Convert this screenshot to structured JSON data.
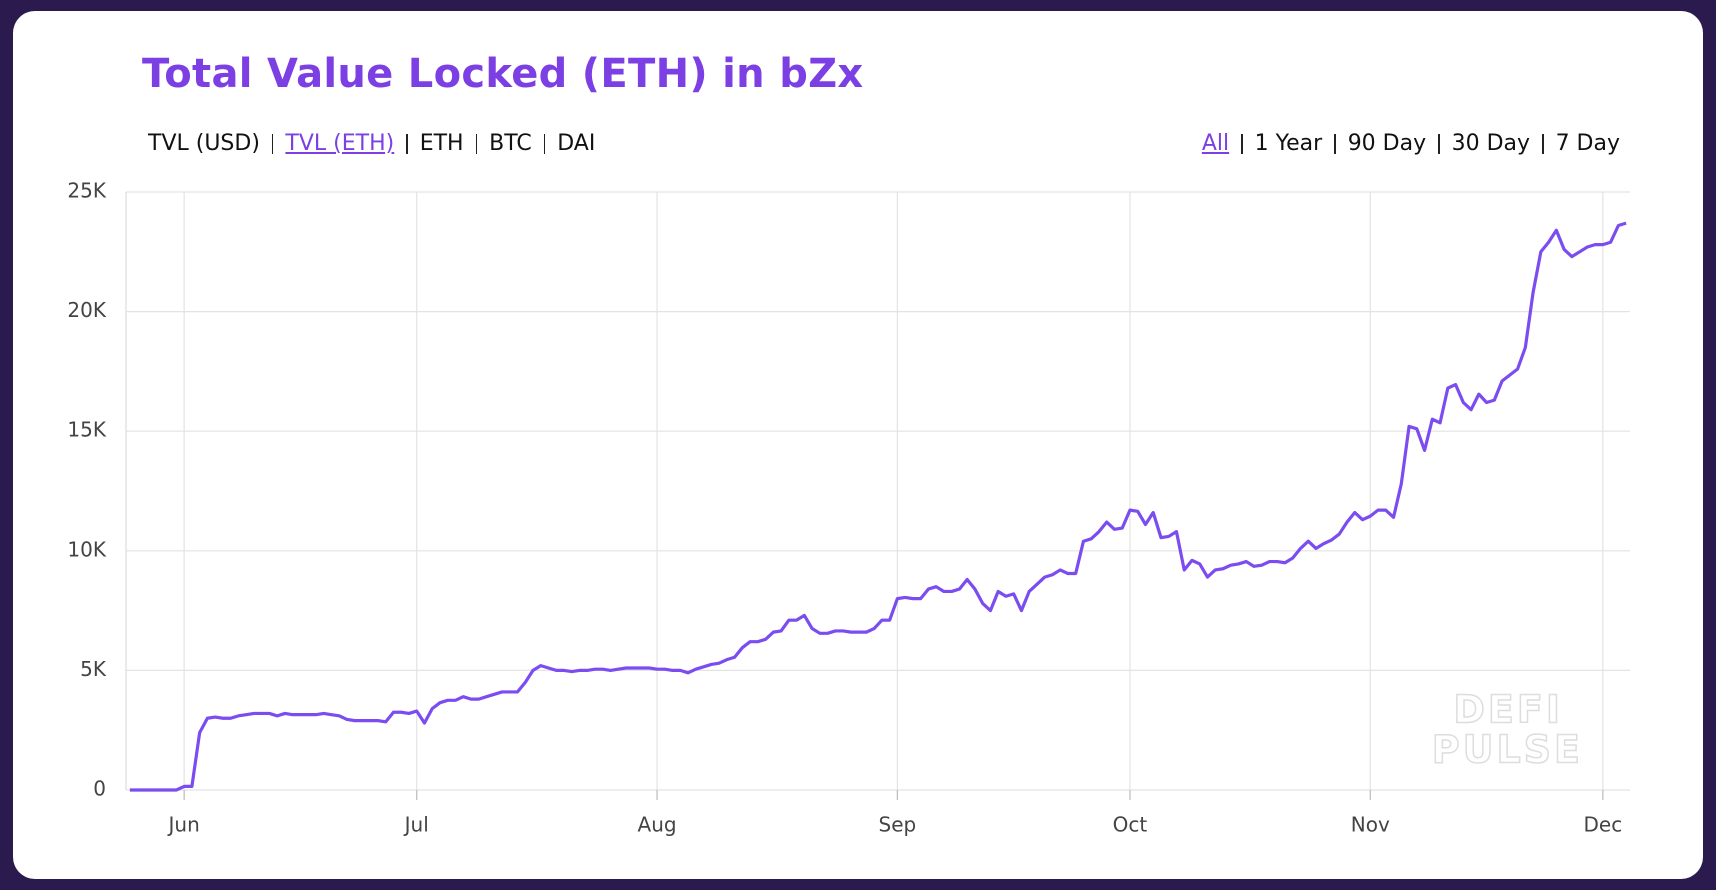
{
  "chart_data": {
    "type": "line",
    "title": "Total Value Locked (ETH) in bZx",
    "color": "#7b4cf0",
    "categories": [
      null,
      null,
      null,
      null,
      null,
      null,
      null,
      "Jun",
      null,
      null,
      null,
      null,
      null,
      null,
      null,
      null,
      null,
      null,
      null,
      null,
      null,
      null,
      null,
      null,
      null,
      null,
      null,
      null,
      null,
      null,
      null,
      null,
      null,
      null,
      null,
      null,
      null,
      "Jul",
      null,
      null,
      null,
      null,
      null,
      null,
      null,
      null,
      null,
      null,
      null,
      null,
      null,
      null,
      null,
      null,
      null,
      null,
      null,
      null,
      null,
      null,
      null,
      null,
      null,
      null,
      null,
      null,
      null,
      null,
      "Aug",
      null,
      null,
      null,
      null,
      null,
      null,
      null,
      null,
      null,
      null,
      null,
      null,
      null,
      null,
      null,
      null,
      null,
      null,
      null,
      null,
      null,
      null,
      null,
      null,
      null,
      null,
      null,
      null,
      null,
      null,
      "Sep",
      null,
      null,
      null,
      null,
      null,
      null,
      null,
      null,
      null,
      null,
      null,
      null,
      null,
      null,
      null,
      null,
      null,
      null,
      null,
      null,
      null,
      null,
      null,
      null,
      null,
      null,
      null,
      null,
      null,
      "Oct",
      null,
      null,
      null,
      null,
      null,
      null,
      null,
      null,
      null,
      null,
      null,
      null,
      null,
      null,
      null,
      null,
      null,
      null,
      null,
      null,
      null,
      null,
      null,
      null,
      null,
      null,
      null,
      null,
      null,
      null,
      "Nov",
      null,
      null,
      null,
      null,
      null,
      null,
      null,
      null,
      null,
      null,
      null,
      null,
      null,
      null,
      null,
      null,
      null,
      null,
      null,
      null,
      null,
      null,
      null,
      null,
      null,
      null,
      null,
      null,
      null,
      "Dec",
      null,
      null,
      null
    ],
    "values": [
      0,
      0,
      0,
      0,
      0,
      0,
      0,
      150,
      150,
      2400,
      3000,
      3050,
      3000,
      3000,
      3100,
      3150,
      3200,
      3200,
      3200,
      3100,
      3200,
      3150,
      3150,
      3150,
      3150,
      3200,
      3150,
      3100,
      2950,
      2900,
      2900,
      2900,
      2900,
      2850,
      3250,
      3250,
      3200,
      3300,
      2800,
      3400,
      3650,
      3750,
      3750,
      3900,
      3800,
      3800,
      3900,
      4000,
      4100,
      4100,
      4100,
      4500,
      5000,
      5200,
      5100,
      5000,
      5000,
      4950,
      5000,
      5000,
      5050,
      5050,
      5000,
      5050,
      5100,
      5100,
      5100,
      5100,
      5050,
      5050,
      5000,
      5000,
      4900,
      5050,
      5150,
      5250,
      5300,
      5450,
      5550,
      5950,
      6200,
      6200,
      6300,
      6600,
      6650,
      7100,
      7100,
      7300,
      6750,
      6550,
      6550,
      6650,
      6650,
      6600,
      6600,
      6600,
      6750,
      7100,
      7100,
      8000,
      8050,
      8000,
      8000,
      8400,
      8500,
      8300,
      8300,
      8400,
      8800,
      8400,
      7800,
      7500,
      8300,
      8100,
      8200,
      7500,
      8300,
      8600,
      8900,
      9000,
      9200,
      9050,
      9050,
      10400,
      10500,
      10800,
      11200,
      10900,
      10950,
      11700,
      11650,
      11100,
      11600,
      10550,
      10600,
      10800,
      9200,
      9600,
      9450,
      8900,
      9200,
      9250,
      9400,
      9450,
      9550,
      9350,
      9400,
      9550,
      9550,
      9500,
      9700,
      10100,
      10400,
      10100,
      10300,
      10450,
      10700,
      11200,
      11600,
      11300,
      11450,
      11700,
      11700,
      11400,
      12800,
      15200,
      15100,
      14200,
      15500,
      15350,
      16800,
      16950,
      16200,
      15900,
      16550,
      16200,
      16300,
      17100,
      17350,
      17600,
      18500,
      20800,
      22500,
      22900,
      23400,
      22600,
      22300,
      22500,
      22700,
      22800,
      22800,
      22900,
      23600,
      23700
    ],
    "ylim": [
      0,
      25000
    ],
    "yticks": [
      0,
      {
        "value": 5000,
        "label": "5K"
      },
      {
        "value": 10000,
        "label": "10K"
      },
      {
        "value": 15000,
        "label": "15K"
      },
      {
        "value": 20000,
        "label": "20K"
      },
      {
        "value": 25000,
        "label": "25K"
      }
    ],
    "grid": true
  },
  "controls": {
    "metric": {
      "options": [
        "TVL (USD)",
        "TVL (ETH)",
        "ETH",
        "BTC",
        "DAI"
      ],
      "active": 1
    },
    "range": {
      "options": [
        "All",
        "1 Year",
        "90 Day",
        "30 Day",
        "7 Day"
      ],
      "active": 0
    }
  },
  "watermark": [
    "DEFI",
    "PULSE"
  ]
}
